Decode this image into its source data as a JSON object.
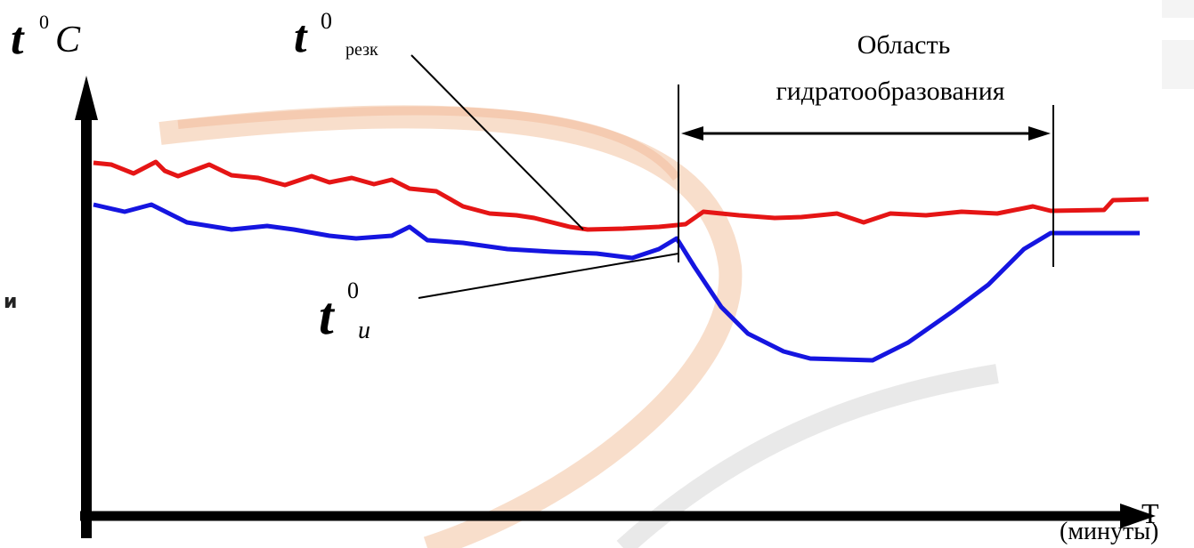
{
  "y_axis": {
    "symbol": "t",
    "superscript": "0",
    "unit": "C"
  },
  "x_axis": {
    "symbol": "Т",
    "unit": "(минуты)"
  },
  "labels": {
    "cutter": {
      "symbol": "t",
      "superscript": "0",
      "subscript": "резк"
    },
    "tool": {
      "symbol": "t",
      "superscript": "0",
      "subscript": "и"
    },
    "region": {
      "line1": "Область",
      "line2": "гидратообразования"
    }
  },
  "side_text": "и"
}
